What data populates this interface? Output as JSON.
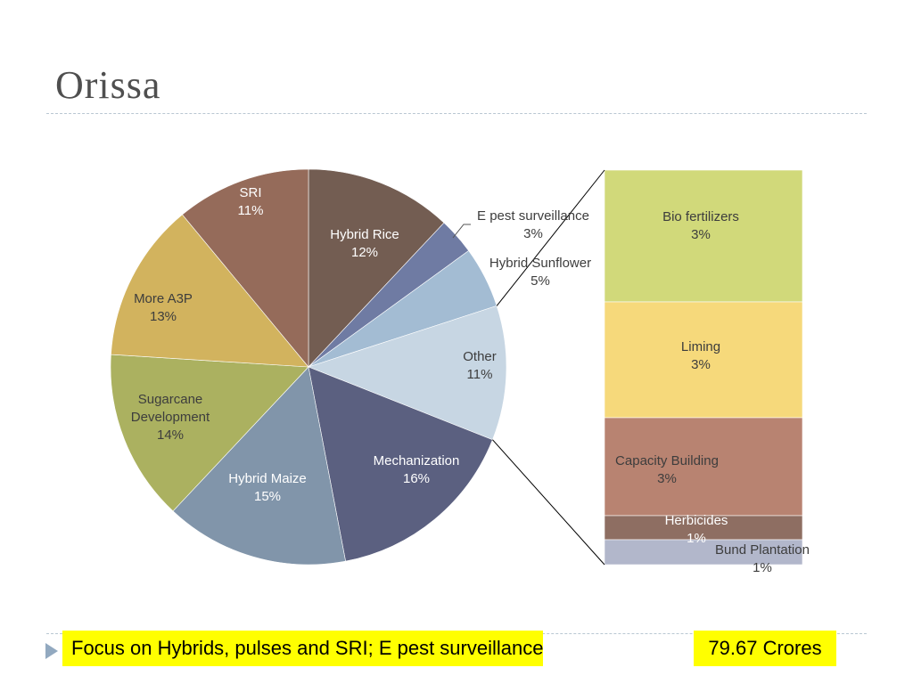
{
  "slide": {
    "title": "Orissa",
    "note": "Focus on Hybrids, pulses and SRI; E pest surveillance",
    "amount": "79.67 Crores",
    "bullet_color": "#92a9c0",
    "highlight_color": "#ffff00"
  },
  "chart_data": {
    "type": "pie",
    "title": "",
    "slices": [
      {
        "label": "Hybrid Rice",
        "value": 12,
        "display": "12%",
        "color": "#735d52",
        "text_color": "#ffffff"
      },
      {
        "label": "E pest surveillance",
        "value": 3,
        "display": "3%",
        "color": "#6f7ba3",
        "text_color": "#3d3d3d"
      },
      {
        "label": "Hybrid Sunflower",
        "value": 5,
        "display": "5%",
        "color": "#a3bcd3",
        "text_color": "#3d3d3d"
      },
      {
        "label": "Other",
        "value": 11,
        "display": "11%",
        "color": "#c7d6e3",
        "text_color": "#3d3d3d"
      },
      {
        "label": "Mechanization",
        "value": 16,
        "display": "16%",
        "color": "#5b6080",
        "text_color": "#ffffff"
      },
      {
        "label": "Hybrid Maize",
        "value": 15,
        "display": "15%",
        "color": "#8195aa",
        "text_color": "#ffffff"
      },
      {
        "label": "Sugarcane Development",
        "value": 14,
        "display": "14%",
        "color": "#abb160",
        "text_color": "#3d3d3d"
      },
      {
        "label": "More A3P",
        "value": 13,
        "display": "13%",
        "color": "#d2b35e",
        "text_color": "#3d3d3d"
      },
      {
        "label": "SRI",
        "value": 11,
        "display": "11%",
        "color": "#956b5a",
        "text_color": "#ffffff"
      }
    ],
    "other_breakdown": [
      {
        "label": "Bio fertilizers",
        "value": 3,
        "display": "3%",
        "color": "#d1d97a",
        "text_color": "#3d3d3d"
      },
      {
        "label": "Liming",
        "value": 3,
        "display": "3%",
        "color": "#f6d97b",
        "text_color": "#3d3d3d"
      },
      {
        "label": "Capacity Building",
        "value": 3,
        "display": "3%",
        "color": "#b88371",
        "text_color": "#3d3d3d"
      },
      {
        "label": "Herbicides",
        "value": 1,
        "display": "1%",
        "color": "#8e6e62",
        "text_color": "#ffffff"
      },
      {
        "label": "Bund Plantation",
        "value": 1,
        "display": "1%",
        "color": "#b2b7cb",
        "text_color": "#3d3d3d"
      }
    ],
    "legend": "none"
  }
}
